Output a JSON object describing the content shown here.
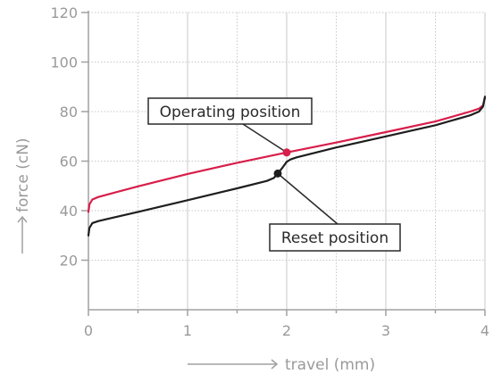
{
  "chart_data": {
    "type": "line",
    "xlabel": "travel (mm)",
    "ylabel": "force (cN)",
    "xlim": [
      0,
      4
    ],
    "ylim": [
      0,
      120
    ],
    "x_ticks": [
      0,
      1,
      2,
      3,
      4
    ],
    "y_ticks": [
      20,
      40,
      60,
      80,
      100,
      120
    ],
    "grid": true,
    "series": [
      {
        "color": "#d81e4a",
        "x": [
          0.0,
          0.01,
          0.04,
          0.1,
          0.5,
          1.0,
          1.5,
          2.0,
          2.5,
          3.0,
          3.5,
          3.85,
          3.94,
          3.98,
          4.0
        ],
        "y": [
          39.5,
          42.5,
          44.5,
          45.5,
          49.8,
          54.8,
          59.3,
          63.5,
          67.5,
          71.7,
          76.0,
          80.0,
          81.2,
          82.5,
          85.5
        ]
      },
      {
        "color": "#1e1e1e",
        "x": [
          0.0,
          0.01,
          0.04,
          0.1,
          0.5,
          1.0,
          1.5,
          1.8,
          1.87,
          1.91,
          1.96,
          2.0,
          2.04,
          2.1,
          2.5,
          3.0,
          3.5,
          3.85,
          3.94,
          3.98,
          4.0
        ],
        "y": [
          30.0,
          33.0,
          35.0,
          35.8,
          39.5,
          44.2,
          49.0,
          52.0,
          53.2,
          55.0,
          57.5,
          59.7,
          60.7,
          61.5,
          65.5,
          70.0,
          74.5,
          78.5,
          80.0,
          82.0,
          86.0
        ]
      }
    ],
    "markers": [
      {
        "series": 0,
        "x": 2.0,
        "y": 63.5
      },
      {
        "series": 1,
        "x": 1.91,
        "y": 55.0
      }
    ],
    "annotations": [
      {
        "text": "Operating position",
        "target_series": 0
      },
      {
        "text": "Reset position",
        "target_series": 1
      }
    ]
  },
  "colors": {
    "axis": "#a0a0a0",
    "grid": "#c8c8c8",
    "callout_border": "#2a2a2a"
  }
}
